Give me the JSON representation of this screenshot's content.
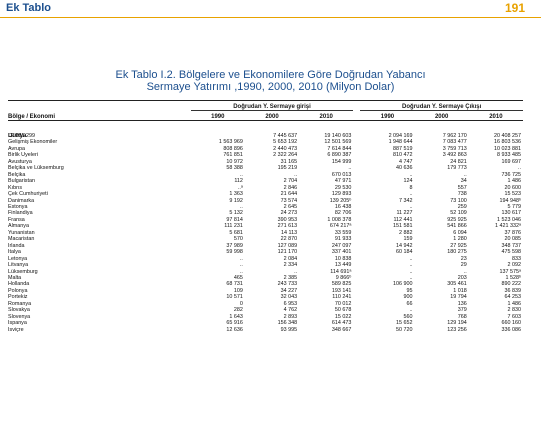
{
  "header": {
    "section": "Ek Tablo",
    "page_number": "191"
  },
  "title": {
    "line1": "Ek Tablo  I.2. Bölgelere ve Ekonomilere Göre   Doğrudan Yabancı",
    "line2": "Sermaye Yatırımı ,1990, 2000, 2010 (Milyon Dolar)"
  },
  "table": {
    "row_header": "Bölge / Ekonomi",
    "group_in": "Doğrudan Y. Sermaye girişi",
    "group_out": "Doğrudan Y. Sermaye Çıkışı",
    "years": [
      "1990",
      "2000",
      "2010",
      "1990",
      "2000",
      "2010"
    ],
    "world": {
      "label": "Dünya",
      "values": [
        "2 081 299",
        "7 445 637",
        "19 140 603",
        "2 094 169",
        "7 962 170",
        "20 408 257"
      ]
    },
    "rows": [
      {
        "level": 1,
        "name": "Gelişmiş Ekonomiler",
        "v": [
          "1 563 969",
          "5 653 192",
          "12 501 569",
          "1 948 644",
          "7 083 477",
          "16 803 536"
        ]
      },
      {
        "level": 1,
        "name": "Avrupa",
        "v": [
          "808 896",
          "2 440 473",
          "7 614 844",
          "887 519",
          "3 759 713",
          "10 023 881"
        ]
      },
      {
        "level": 2,
        "name": "Birlik Üyeleri",
        "v": [
          "761 851",
          "2 322 264",
          "6 890 387",
          "810 472",
          "3 492 863",
          "8 933 485"
        ]
      },
      {
        "level": 2,
        "name": "Avusturya",
        "v": [
          "10 972",
          "31 165",
          "154 999",
          "4 747",
          "24 821",
          "169 697"
        ]
      },
      {
        "level": 2,
        "name": "Belçika ve Lüksemburg",
        "v": [
          "58 388",
          "195 219",
          "..",
          "40 636",
          "179 773",
          ".."
        ]
      },
      {
        "level": 2,
        "name": "Belçika",
        "v": [
          "..",
          "..",
          "670 013",
          "..",
          "..",
          "736 725"
        ]
      },
      {
        "level": 2,
        "name": "Bulgaristan",
        "v": [
          "112",
          "2 704",
          "47 971",
          "124",
          "34",
          "1 486"
        ]
      },
      {
        "level": 2,
        "name": "Kıbrıs",
        "v": [
          "..ᵃ",
          "2 846",
          "29 530",
          "8",
          "557",
          "20 600"
        ]
      },
      {
        "level": 2,
        "name": "Çek Cumhuriyeti",
        "v": [
          "1 363",
          "21 644",
          "129 893",
          "..",
          "738",
          "15 523"
        ]
      },
      {
        "level": 2,
        "name": "Danimarka",
        "v": [
          "9 192",
          "73 574",
          "139 205ᵇ",
          "7 342",
          "73 100",
          "194 948ᵇ"
        ]
      },
      {
        "level": 3,
        "name": "Estonya",
        "v": [
          "..",
          "2 645",
          "16 438",
          "..",
          "259",
          "5 779"
        ]
      },
      {
        "level": 3,
        "name": "Finlandiya",
        "v": [
          "5 132",
          "24 273",
          "82 706",
          "11 227",
          "52 109",
          "130 617"
        ]
      },
      {
        "level": 3,
        "name": "Fransa",
        "v": [
          "97 814",
          "390 953",
          "1 008 378",
          "112 441",
          "925 925",
          "1 523 046"
        ]
      },
      {
        "level": 3,
        "name": "Almanya",
        "v": [
          "111 231",
          "271 613",
          "674 217ᵃ",
          "151 581",
          "541 866",
          "1 421 332ᵃ"
        ]
      },
      {
        "level": 3,
        "name": "Yunanistan",
        "v": [
          "5 681",
          "14 113",
          "33 559",
          "2 882",
          "6 094",
          "37 876"
        ]
      },
      {
        "level": 3,
        "name": "Macaristan",
        "v": [
          "570",
          "22 870",
          "91 933",
          "159",
          "1 280",
          "20 085"
        ]
      },
      {
        "level": 3,
        "name": "İrlanda",
        "v": [
          "37 989",
          "127 089",
          "247 097",
          "14 942",
          "27 925",
          "348 737"
        ]
      },
      {
        "level": 3,
        "name": "İtalya",
        "v": [
          "59 998",
          "121 170",
          "337 401",
          "60 184",
          "180 275",
          "475 598"
        ]
      },
      {
        "level": 3,
        "name": "Letonya",
        "v": [
          "..",
          "2 084",
          "10 838",
          "..",
          "23",
          "833"
        ]
      },
      {
        "level": 3,
        "name": "Litvanya",
        "v": [
          "..",
          "2 334",
          "13 449",
          "..",
          "29",
          "2 092"
        ]
      },
      {
        "level": 3,
        "name": "Lüksemburg",
        "v": [
          "..",
          "..",
          "114 691ᵃ",
          "..",
          "..",
          "137 575ᵃ"
        ]
      },
      {
        "level": 3,
        "name": "Malta",
        "v": [
          "465",
          "2 385",
          "9 866ᵇ",
          "..",
          "203",
          "1 528ᵇ"
        ]
      },
      {
        "level": 3,
        "name": "Hollanda",
        "v": [
          "68 731",
          "243 733",
          "589 825",
          "106 900",
          "305 461",
          "890 222"
        ]
      },
      {
        "level": 3,
        "name": "Polonya",
        "v": [
          "109",
          "34 227",
          "193 141",
          "95",
          "1 018",
          "36 839"
        ]
      },
      {
        "level": 3,
        "name": "Portekiz",
        "v": [
          "10 571",
          "32 043",
          "110 241",
          "900",
          "19 794",
          "64 253"
        ]
      },
      {
        "level": 3,
        "name": "Romanya",
        "v": [
          "0",
          "6 953",
          "70 012",
          "66",
          "136",
          "1 486"
        ]
      },
      {
        "level": 3,
        "name": "Slovakya",
        "v": [
          "282",
          "4 762",
          "50 678",
          "..",
          "379",
          "2 830"
        ]
      },
      {
        "level": 3,
        "name": "Slovenya",
        "v": [
          "1 643",
          "2 893",
          "15 022",
          "560",
          "768",
          "7 603"
        ]
      },
      {
        "level": 3,
        "name": "İspanya",
        "v": [
          "65 916",
          "156 348",
          "614 473",
          "15 652",
          "129 194",
          "660 160"
        ]
      },
      {
        "level": 3,
        "name": "İsviçre",
        "v": [
          "12 636",
          "93 995",
          "348 667",
          "50 720",
          "123 256",
          "336 086"
        ]
      }
    ]
  }
}
